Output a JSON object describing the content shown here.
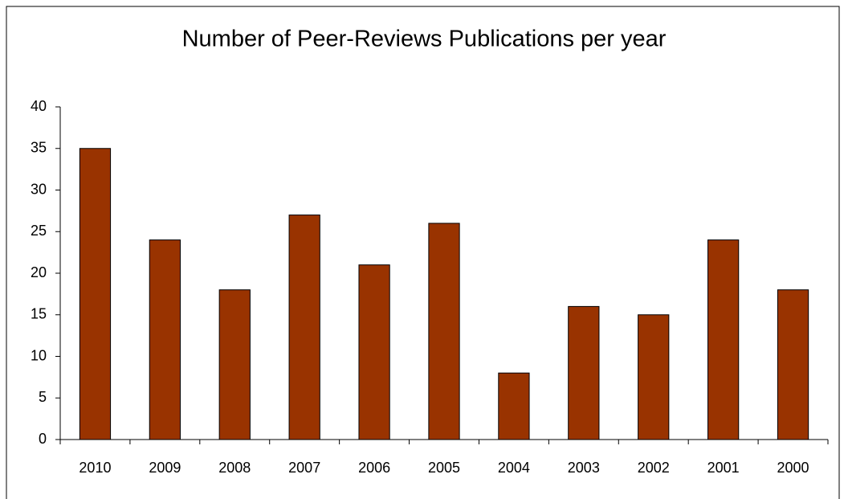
{
  "chart_data": {
    "type": "bar",
    "title": "Number of Peer-Reviews Publications per year",
    "categories": [
      "2010",
      "2009",
      "2008",
      "2007",
      "2006",
      "2005",
      "2004",
      "2003",
      "2002",
      "2001",
      "2000"
    ],
    "values": [
      35,
      24,
      18,
      27,
      21,
      26,
      8,
      16,
      15,
      24,
      18
    ],
    "color": "#993300",
    "ylim": [
      0,
      40
    ],
    "yticks": [
      0,
      5,
      10,
      15,
      20,
      25,
      30,
      35,
      40
    ],
    "grid": false
  }
}
